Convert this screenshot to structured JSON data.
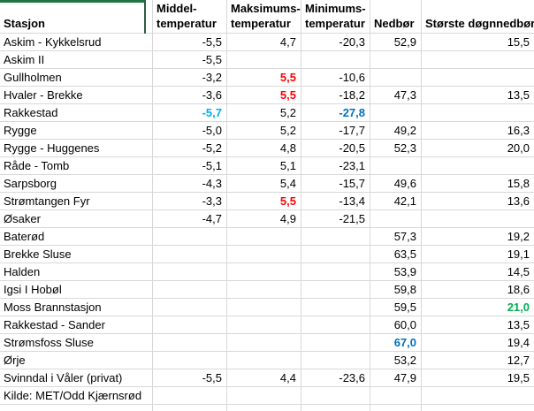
{
  "app": {
    "type": "spreadsheet-grid",
    "language": "Norwegian"
  },
  "colors": {
    "red": "#FF0000",
    "green": "#00B050",
    "light_blue": "#00B0F0",
    "blue": "#0070C0",
    "selection_green": "#217346",
    "gridline": "#D8D8D8",
    "text": "#000000"
  },
  "header": {
    "station": "Stasjon",
    "middel_line1": "Middel-",
    "middel_line2": "temperatur",
    "maks_line1": "Maksimums-",
    "maks_line2": "temperatur",
    "min_line1": "Minimums-",
    "min_line2": "temperatur",
    "nedbor": "Nedbør",
    "dogn": "Største døgnnedbør"
  },
  "rows": [
    {
      "station": "Askim - Kykkelsrud",
      "middel": "-5,5",
      "maks": "4,7",
      "min": "-20,3",
      "nedbor": "52,9",
      "dogn": "15,5"
    },
    {
      "station": "Askim II",
      "middel": "-5,5",
      "maks": "",
      "min": "",
      "nedbor": "",
      "dogn": ""
    },
    {
      "station": "Gullholmen",
      "middel": "-3,2",
      "maks": "5,5",
      "maks_style": "red",
      "min": "-10,6",
      "nedbor": "",
      "dogn": ""
    },
    {
      "station": "Hvaler - Brekke",
      "middel": "-3,6",
      "maks": "5,5",
      "maks_style": "red",
      "min": "-18,2",
      "nedbor": "47,3",
      "dogn": "13,5"
    },
    {
      "station": "Rakkestad",
      "middel": "-5,7",
      "middel_style": "lightblue",
      "maks": "5,2",
      "min": "-27,8",
      "min_style": "blue",
      "nedbor": "",
      "dogn": ""
    },
    {
      "station": "Rygge",
      "middel": "-5,0",
      "maks": "5,2",
      "min": "-17,7",
      "nedbor": "49,2",
      "dogn": "16,3"
    },
    {
      "station": "Rygge - Huggenes",
      "middel": "-5,2",
      "maks": "4,8",
      "min": "-20,5",
      "nedbor": "52,3",
      "dogn": "20,0"
    },
    {
      "station": "Råde - Tomb",
      "middel": "-5,1",
      "maks": "5,1",
      "min": "-23,1",
      "nedbor": "",
      "dogn": ""
    },
    {
      "station": "Sarpsborg",
      "middel": "-4,3",
      "maks": "5,4",
      "min": "-15,7",
      "nedbor": "49,6",
      "dogn": "15,8"
    },
    {
      "station": "Strømtangen Fyr",
      "middel": "-3,3",
      "maks": "5,5",
      "maks_style": "red",
      "min": "-13,4",
      "nedbor": "42,1",
      "dogn": "13,6"
    },
    {
      "station": "Øsaker",
      "middel": "-4,7",
      "maks": "4,9",
      "min": "-21,5",
      "nedbor": "",
      "dogn": ""
    },
    {
      "station": "Baterød",
      "middel": "",
      "maks": "",
      "min": "",
      "nedbor": "57,3",
      "dogn": "19,2"
    },
    {
      "station": "Brekke Sluse",
      "middel": "",
      "maks": "",
      "min": "",
      "nedbor": "63,5",
      "dogn": "19,1"
    },
    {
      "station": "Halden",
      "middel": "",
      "maks": "",
      "min": "",
      "nedbor": "53,9",
      "dogn": "14,5"
    },
    {
      "station": "Igsi I Hobøl",
      "middel": "",
      "maks": "",
      "min": "",
      "nedbor": "59,8",
      "dogn": "18,6"
    },
    {
      "station": "Moss Brannstasjon",
      "middel": "",
      "maks": "",
      "min": "",
      "nedbor": "59,5",
      "dogn": "21,0",
      "dogn_style": "green"
    },
    {
      "station": "Rakkestad - Sander",
      "middel": "",
      "maks": "",
      "min": "",
      "nedbor": "60,0",
      "dogn": "13,5"
    },
    {
      "station": "Strømsfoss Sluse",
      "middel": "",
      "maks": "",
      "min": "",
      "nedbor": "67,0",
      "nedbor_style": "blue",
      "dogn": "19,4"
    },
    {
      "station": "Ørje",
      "middel": "",
      "maks": "",
      "min": "",
      "nedbor": "53,2",
      "dogn": "12,7"
    },
    {
      "station": "Svinndal i Våler (privat)",
      "middel": "-5,5",
      "maks": "4,4",
      "min": "-23,6",
      "nedbor": "47,9",
      "dogn": "19,5"
    },
    {
      "station": "Kilde: MET/Odd Kjærnsrød",
      "middel": "",
      "maks": "",
      "min": "",
      "nedbor": "",
      "dogn": ""
    }
  ]
}
